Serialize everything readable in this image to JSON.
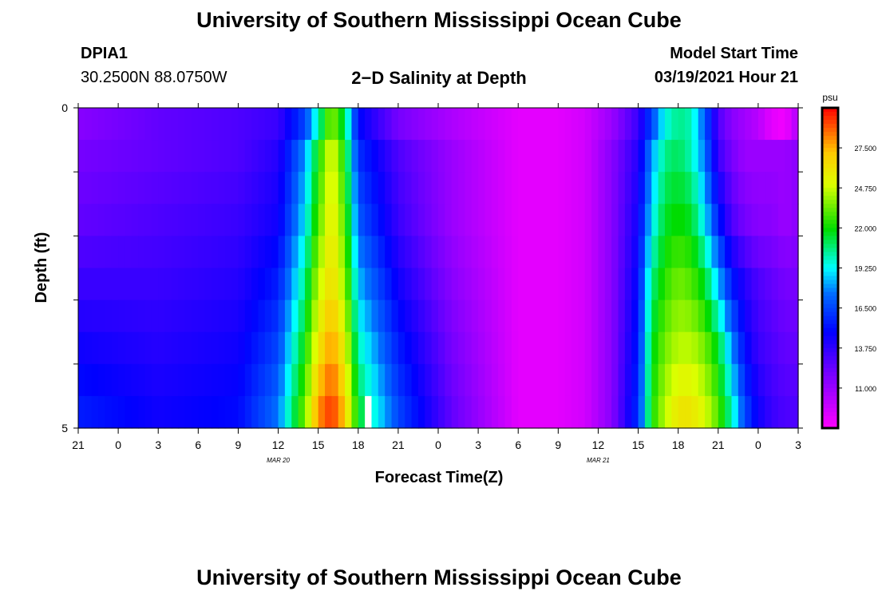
{
  "page": {
    "title_top": "University of Southern Mississippi Ocean Cube",
    "title_bottom": "University of Southern Mississippi Ocean Cube",
    "station_id": "DPIA1",
    "station_coords": "30.2500N 88.0750W",
    "plot_title": "2−D Salinity at Depth",
    "model_label": "Model Start Time",
    "model_time": "03/19/2021 Hour 21"
  },
  "chart_data": {
    "type": "heatmap",
    "title": "2−D Salinity at Depth",
    "xlabel": "Forecast Time(Z)",
    "ylabel": "Depth (ft)",
    "x_tick_labels": [
      "21",
      "0",
      "3",
      "6",
      "9",
      "12",
      "15",
      "18",
      "21",
      "0",
      "3",
      "6",
      "9",
      "12",
      "15",
      "18",
      "21",
      "0",
      "3"
    ],
    "x_date_labels": [
      {
        "text": "MAR  20",
        "tick_index": 5
      },
      {
        "text": "MAR  21",
        "tick_index": 13
      }
    ],
    "y_tick_labels": [
      {
        "value": 0,
        "label": "0"
      },
      {
        "value": 5,
        "label": "5"
      }
    ],
    "ylim": [
      0,
      5
    ],
    "colorbar": {
      "unit": "psu",
      "vmin": 8.25,
      "vmax": 30.25,
      "tick_labels": [
        "27.500",
        "24.750",
        "22.000",
        "19.250",
        "16.500",
        "13.750",
        "11.000"
      ],
      "tick_values": [
        27.5,
        24.75,
        22.0,
        19.25,
        16.5,
        13.75,
        11.0
      ]
    },
    "time_hours": [
      0,
      3,
      6,
      9,
      12,
      15,
      18,
      21,
      24,
      27,
      30,
      33,
      36,
      39,
      42,
      45,
      48,
      51,
      54
    ],
    "depth_bins_ft": [
      0.25,
      0.75,
      1.25,
      1.75,
      2.25,
      2.75,
      3.25,
      3.75,
      4.25,
      4.75
    ],
    "grid_anchors": [
      {
        "depth": 0.25,
        "t": [
          0,
          6,
          12,
          15,
          17,
          18,
          19,
          20,
          21,
          24,
          28,
          33,
          36,
          38,
          40,
          42,
          43,
          44,
          45,
          46,
          47,
          48,
          49,
          50,
          51,
          52,
          53,
          54
        ],
        "v": [
          11.5,
          12.5,
          13.0,
          13.5,
          16.5,
          20.0,
          24.0,
          21.0,
          15.0,
          12.0,
          10.5,
          9.0,
          9.0,
          9.5,
          11.0,
          13.5,
          16.5,
          19.5,
          20.5,
          20.0,
          17.0,
          13.0,
          11.5,
          10.8,
          10.2,
          9.0,
          8.6,
          10.5
        ]
      },
      {
        "depth": 0.75,
        "t": [
          0,
          6,
          12,
          15,
          17,
          18,
          19,
          20,
          21,
          24,
          28,
          33,
          36,
          38,
          40,
          42,
          43,
          44,
          45,
          46,
          47,
          48,
          49,
          50,
          51,
          52,
          53,
          54
        ],
        "v": [
          12.0,
          12.5,
          13.0,
          14.0,
          18.0,
          22.0,
          25.5,
          22.0,
          16.0,
          13.0,
          11.0,
          9.0,
          9.0,
          9.5,
          11.5,
          14.0,
          18.0,
          20.5,
          21.0,
          20.0,
          17.5,
          13.5,
          12.0,
          11.0,
          11.0,
          11.0,
          11.0,
          11.5
        ]
      },
      {
        "depth": 1.75,
        "t": [
          0,
          6,
          12,
          15,
          17,
          18,
          19,
          20,
          21,
          24,
          28,
          33,
          36,
          38,
          40,
          42,
          43,
          44,
          45,
          46,
          47,
          48,
          49,
          50,
          51,
          52,
          53,
          54
        ],
        "v": [
          12.5,
          13.0,
          13.5,
          14.5,
          19.0,
          23.0,
          26.0,
          23.0,
          17.0,
          13.5,
          11.0,
          9.0,
          9.0,
          9.5,
          11.5,
          14.5,
          19.0,
          21.5,
          22.0,
          21.5,
          19.0,
          15.5,
          13.0,
          12.0,
          11.5,
          11.5,
          11.0,
          11.5
        ]
      },
      {
        "depth": 2.75,
        "t": [
          0,
          6,
          12,
          15,
          17,
          18,
          19,
          20,
          21,
          24,
          28,
          33,
          36,
          38,
          40,
          42,
          43,
          44,
          45,
          46,
          47,
          48,
          49,
          50,
          51,
          52,
          53,
          54
        ],
        "v": [
          13.5,
          13.5,
          14.0,
          15.5,
          20.5,
          24.5,
          26.5,
          24.0,
          18.5,
          14.5,
          11.5,
          9.0,
          9.0,
          9.5,
          11.5,
          15.0,
          20.5,
          22.5,
          23.5,
          23.0,
          21.5,
          18.5,
          15.5,
          14.0,
          13.0,
          12.5,
          12.0,
          12.0
        ]
      },
      {
        "depth": 3.75,
        "t": [
          0,
          6,
          12,
          15,
          17,
          18,
          19,
          20,
          21,
          24,
          28,
          33,
          36,
          38,
          40,
          42,
          43,
          44,
          45,
          46,
          47,
          48,
          49,
          50,
          51,
          52,
          53,
          54
        ],
        "v": [
          14.5,
          14.0,
          14.5,
          16.5,
          22.0,
          26.0,
          28.0,
          25.5,
          20.0,
          15.5,
          12.0,
          9.0,
          9.0,
          9.5,
          11.5,
          15.5,
          21.5,
          23.5,
          24.5,
          24.5,
          23.5,
          21.5,
          18.0,
          15.0,
          13.5,
          13.0,
          12.5,
          12.5
        ]
      },
      {
        "depth": 4.75,
        "t": [
          0,
          6,
          12,
          15,
          17,
          18,
          19,
          20,
          21,
          24,
          28,
          33,
          36,
          38,
          40,
          42,
          43,
          44,
          45,
          46,
          47,
          48,
          49,
          50,
          51,
          52,
          53,
          54
        ],
        "v": [
          15.5,
          14.5,
          15.0,
          17.5,
          23.5,
          28.0,
          29.5,
          27.0,
          21.5,
          16.5,
          12.5,
          9.0,
          9.0,
          9.5,
          11.5,
          16.0,
          22.0,
          24.5,
          26.0,
          26.0,
          25.0,
          23.0,
          20.0,
          16.5,
          14.5,
          13.5,
          13.0,
          13.0
        ]
      }
    ],
    "missing_cells": [
      {
        "t_start": 21.5,
        "t_end": 22.0,
        "depth_start": 4.5,
        "depth_end": 5.0
      }
    ],
    "colors": {
      "missing": "#ffffff",
      "frame": "#000000"
    }
  }
}
